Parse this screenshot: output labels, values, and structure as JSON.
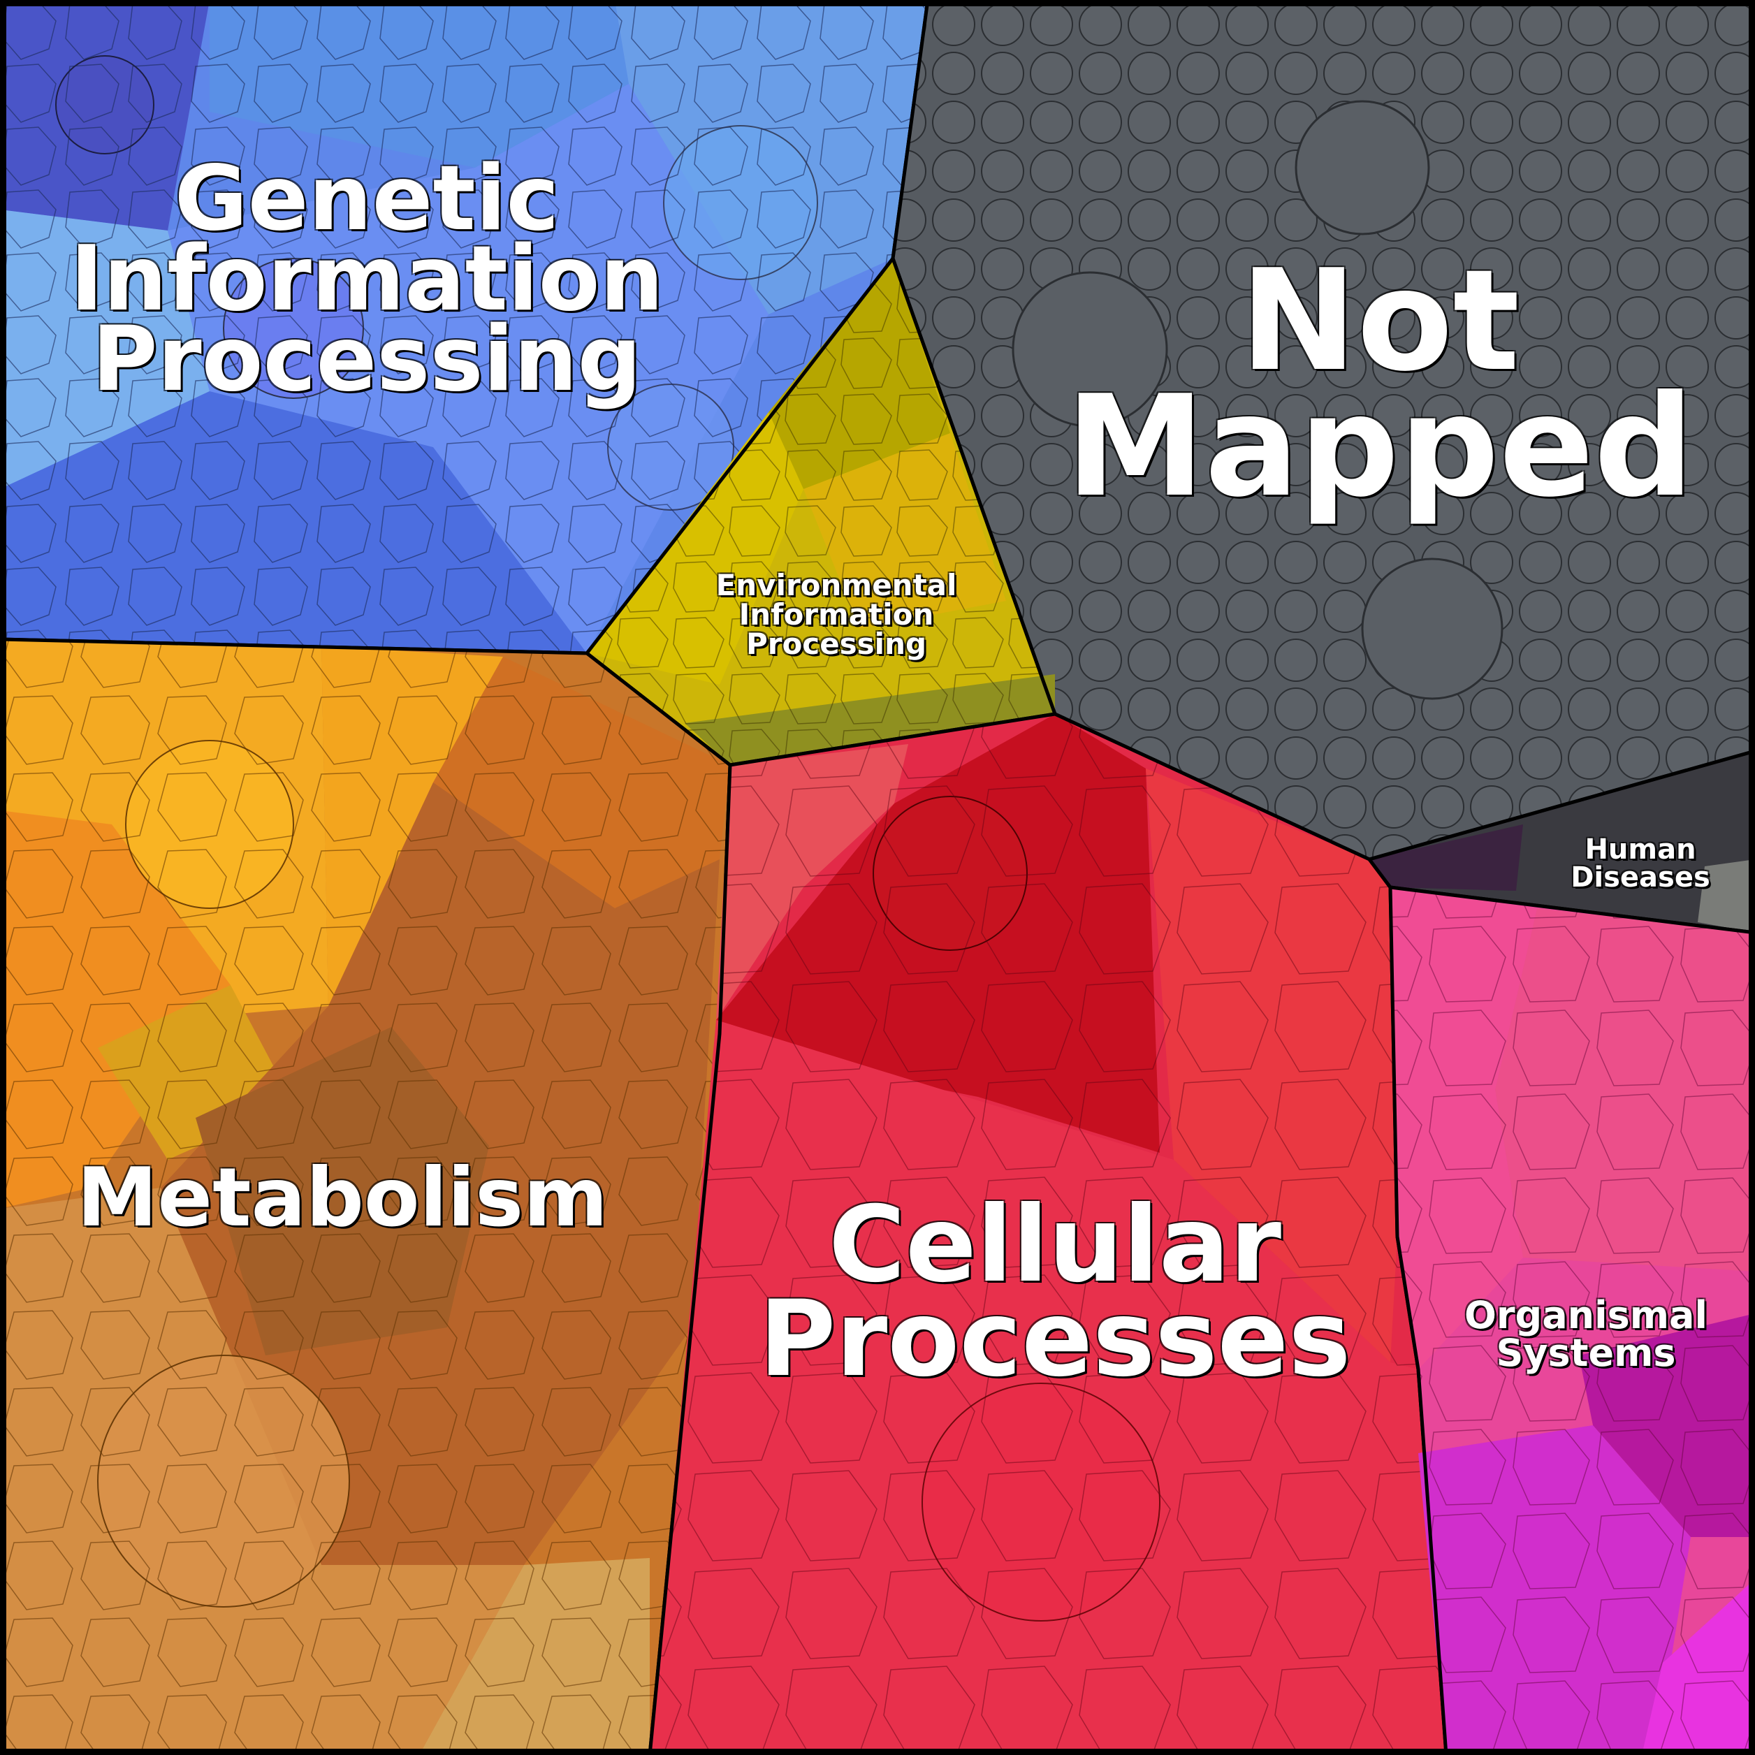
{
  "diagram": {
    "regions": [
      {
        "key": "genetic",
        "lines": [
          "Genetic",
          "Information",
          "Processing"
        ],
        "color": "#5f87ea"
      },
      {
        "key": "notmapped",
        "lines": [
          "Not",
          "Mapped"
        ],
        "color": "#565b61"
      },
      {
        "key": "environmental",
        "lines": [
          "Environmental",
          "Information",
          "Processing"
        ],
        "color": "#cdb608"
      },
      {
        "key": "metabolism",
        "lines": [
          "Metabolism"
        ],
        "color": "#c9762a"
      },
      {
        "key": "cellular",
        "lines": [
          "Cellular",
          "Processes"
        ],
        "color": "#e32a48"
      },
      {
        "key": "human",
        "lines": [
          "Human",
          "Diseases"
        ],
        "color": "#3a3a40"
      },
      {
        "key": "organismal",
        "lines": [
          "Organismal",
          "Systems"
        ],
        "color": "#e8479a"
      }
    ]
  }
}
